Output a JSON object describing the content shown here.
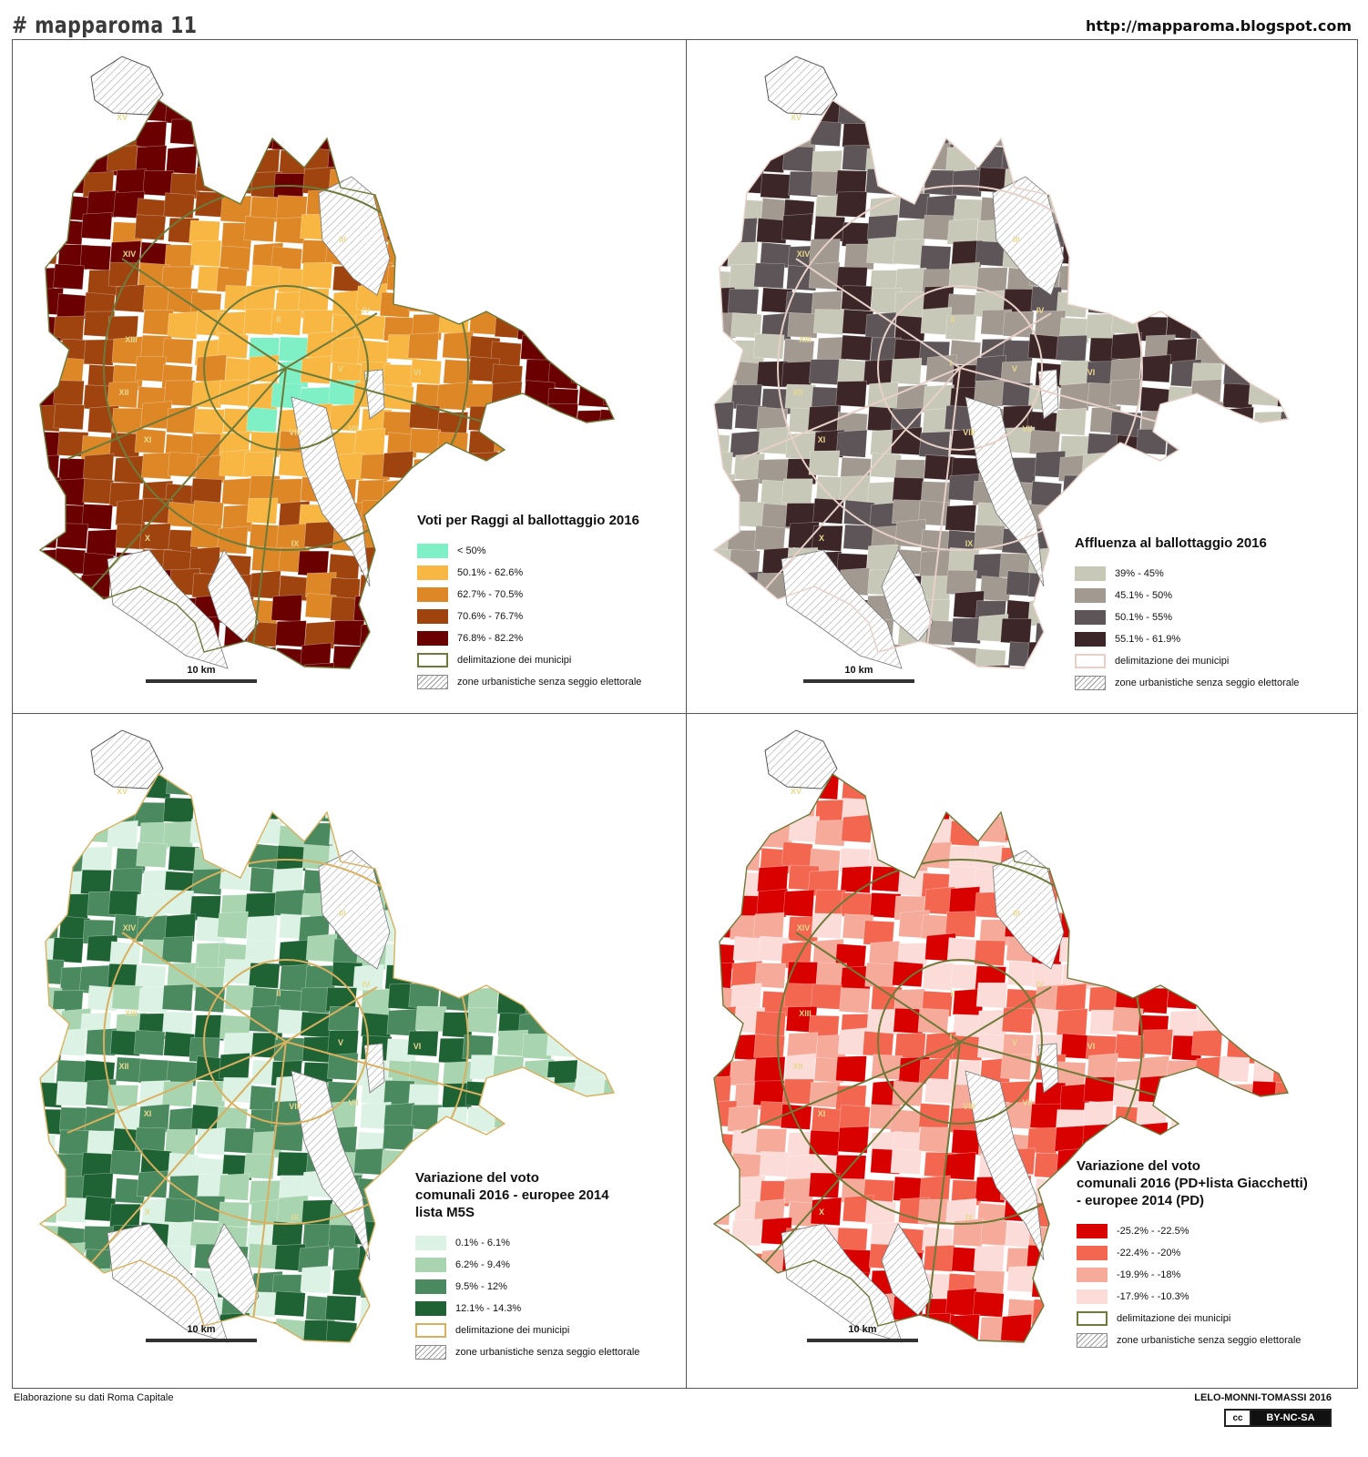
{
  "header": {
    "title": "# mapparoma 11",
    "url": "http://mapparoma.blogspot.com"
  },
  "footer": {
    "source": "Elaborazione su dati Roma Capitale",
    "authors": "LELO-MONNI-TOMASSI 2016",
    "license": "BY-NC-SA",
    "license_icon": "cc"
  },
  "municipi": [
    "XV",
    "III",
    "XIV",
    "IV",
    "XIII",
    "II",
    "V",
    "I",
    "XII",
    "VI",
    "XI",
    "VIII",
    "VII",
    "IX",
    "X"
  ],
  "scale_label": "10 km",
  "panels": [
    {
      "title": "Voti per Raggi al ballottaggio 2016",
      "colors": [
        "#7ff0c6",
        "#f7b742",
        "#dd8726",
        "#a0440f",
        "#6a0000"
      ],
      "outline": "#6e7a3a",
      "legend": [
        {
          "label": "< 50%",
          "color": "#7ff0c6"
        },
        {
          "label": "50.1% - 62.6%",
          "color": "#f7b742"
        },
        {
          "label": "62.7% - 70.5%",
          "color": "#dd8726"
        },
        {
          "label": "70.6% - 76.7%",
          "color": "#a0440f"
        },
        {
          "label": "76.8% - 82.2%",
          "color": "#6a0000"
        }
      ],
      "border_label": "delimitazione dei municipi",
      "hatch_label": "zone urbanistiche senza seggio elettorale"
    },
    {
      "title": "Affluenza al ballottaggio 2016",
      "colors": [
        "#c8c8b8",
        "#a29990",
        "#5e5558",
        "#3c2628"
      ],
      "outline": "#e6d0c8",
      "legend": [
        {
          "label": "39% - 45%",
          "color": "#c8c8b8"
        },
        {
          "label": "45.1% - 50%",
          "color": "#a29990"
        },
        {
          "label": "50.1% - 55%",
          "color": "#5e5558"
        },
        {
          "label": "55.1% - 61.9%",
          "color": "#3c2628"
        }
      ],
      "border_label": "delimitazione dei municipi",
      "hatch_label": "zone urbanistiche senza seggio elettorale"
    },
    {
      "title_lines": [
        "Variazione del voto",
        "comunali 2016 - europee 2014",
        "lista M5S"
      ],
      "colors": [
        "#dbf2e4",
        "#a8d5b0",
        "#4a8a5e",
        "#1f6334"
      ],
      "outline": "#d8b060",
      "legend": [
        {
          "label": "0.1% - 6.1%",
          "color": "#dbf2e4"
        },
        {
          "label": "6.2% - 9.4%",
          "color": "#a8d5b0"
        },
        {
          "label": "9.5% - 12%",
          "color": "#4a8a5e"
        },
        {
          "label": "12.1% - 14.3%",
          "color": "#1f6334"
        }
      ],
      "border_label": "delimitazione dei municipi",
      "hatch_label": "zone urbanistiche senza seggio elettorale"
    },
    {
      "title_lines": [
        "Variazione del voto",
        "comunali 2016 (PD+lista Giacchetti)",
        "- europee 2014 (PD)"
      ],
      "colors": [
        "#d90000",
        "#f36650",
        "#f6aa9a",
        "#fbdcd8"
      ],
      "outline": "#6e7a3a",
      "legend": [
        {
          "label": "-25.2% - -22.5%",
          "color": "#d90000"
        },
        {
          "label": "-22.4% - -20%",
          "color": "#f36650"
        },
        {
          "label": "-19.9% - -18%",
          "color": "#f6aa9a"
        },
        {
          "label": "-17.9% - -10.3%",
          "color": "#fbdcd8"
        }
      ],
      "border_label": "delimitazione dei municipi",
      "hatch_label": "zone urbanistiche senza seggio elettorale"
    }
  ]
}
